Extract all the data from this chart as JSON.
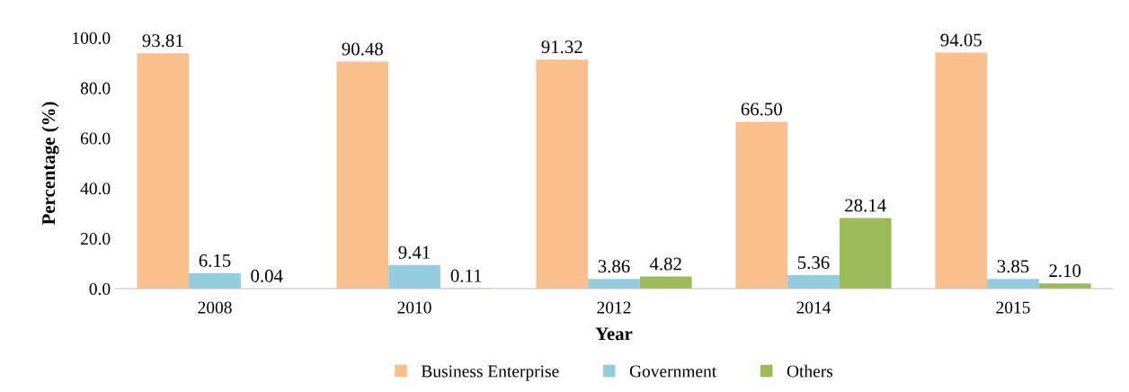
{
  "chart_data": {
    "type": "bar",
    "xlabel": "Year",
    "ylabel": "Percentage (%)",
    "categories": [
      "2008",
      "2010",
      "2012",
      "2014",
      "2015"
    ],
    "series": [
      {
        "name": "Business Enterprise",
        "color": "#f9c08e",
        "values": [
          93.81,
          90.48,
          91.32,
          66.5,
          94.05
        ],
        "value_labels": [
          "93.81",
          "90.48",
          "91.32",
          "66.50",
          "94.05"
        ]
      },
      {
        "name": "Government",
        "color": "#93cddd",
        "values": [
          6.15,
          9.41,
          3.86,
          5.36,
          3.85
        ],
        "value_labels": [
          "6.15",
          "9.41",
          "3.86",
          "5.36",
          "3.85"
        ]
      },
      {
        "name": "Others",
        "color": "#9bbb59",
        "values": [
          0.04,
          0.11,
          4.82,
          28.14,
          2.1
        ],
        "value_labels": [
          "0.04",
          "0.11",
          "4.82",
          "28.14",
          "2.10"
        ]
      }
    ],
    "ylim": [
      0,
      100
    ],
    "yticks": [
      {
        "value": 0,
        "label": "0.0"
      },
      {
        "value": 20,
        "label": "20.0"
      },
      {
        "value": 40,
        "label": "40.0"
      },
      {
        "value": 60,
        "label": "60.0"
      },
      {
        "value": 80,
        "label": "80.0"
      },
      {
        "value": 100,
        "label": "100.0"
      }
    ],
    "grid": false,
    "legend": "bottom"
  }
}
